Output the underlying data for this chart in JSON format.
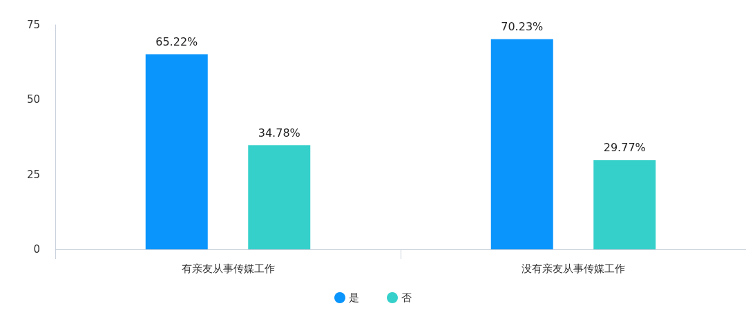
{
  "chart_data": {
    "type": "bar",
    "categories": [
      "有亲友从事传媒工作",
      "没有亲友从事传媒工作"
    ],
    "series": [
      {
        "name": "是",
        "color": "#0a95fc",
        "values": [
          65.22,
          70.23
        ],
        "value_labels": [
          "65.22%",
          "70.23%"
        ]
      },
      {
        "name": "否",
        "color": "#36d0cb",
        "values": [
          34.78,
          29.77
        ],
        "value_labels": [
          "34.78%",
          "29.77%"
        ]
      }
    ],
    "ylim": [
      0,
      75
    ],
    "yticks": [
      0,
      25,
      50,
      75
    ],
    "grid": false,
    "legend": "bottom"
  }
}
